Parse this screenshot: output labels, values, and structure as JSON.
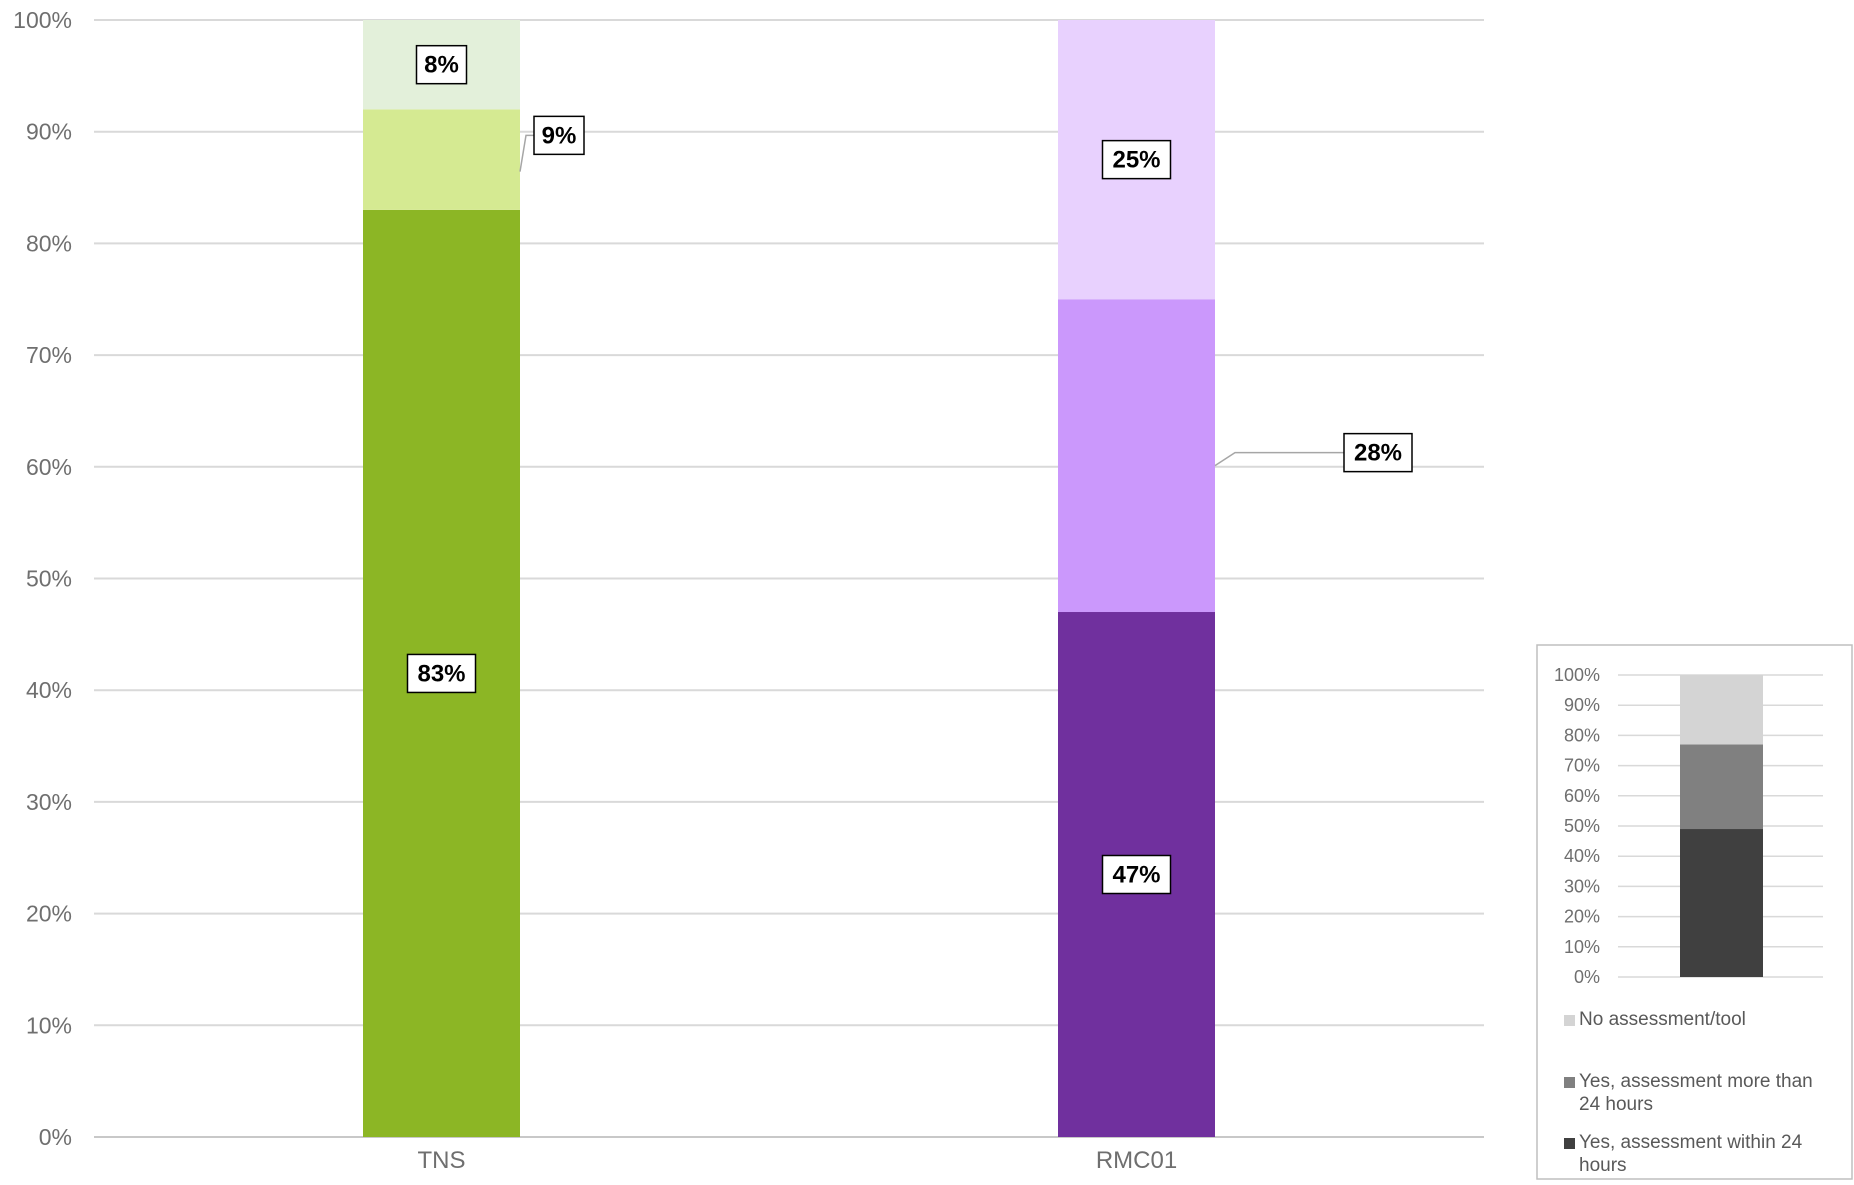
{
  "chart_data": {
    "type": "bar",
    "stacked": true,
    "percent_stacked": true,
    "categories": [
      "TNS",
      "RMC01"
    ],
    "series": [
      {
        "values": [
          83,
          47
        ],
        "colors": [
          "#8cb625",
          "#70309e"
        ]
      },
      {
        "values": [
          9,
          28
        ],
        "colors": [
          "#d5ea92",
          "#cb98fc"
        ]
      },
      {
        "values": [
          8,
          25
        ],
        "colors": [
          "#e3f0da",
          "#e8d1fe"
        ]
      }
    ],
    "data_labels": [
      [
        "83%",
        "9%",
        "8%"
      ],
      [
        "47%",
        "28%",
        "25%"
      ]
    ],
    "ylim": [
      0,
      100
    ],
    "y_ticks": [
      "0%",
      "10%",
      "20%",
      "30%",
      "40%",
      "50%",
      "60%",
      "70%",
      "80%",
      "90%",
      "100%"
    ],
    "grid": true,
    "legend": {
      "placement": "bottom-right",
      "example_values": [
        49,
        28,
        23
      ],
      "example_colors": [
        "#404040",
        "#808080",
        "#d4d4d4"
      ],
      "entries": [
        {
          "label": "No assessment/tool",
          "color": "#d4d4d4"
        },
        {
          "label": "Yes, assessment more than 24 hours",
          "color": "#808080"
        },
        {
          "label": "Yes, assessment within 24 hours",
          "color": "#404040"
        }
      ]
    }
  }
}
